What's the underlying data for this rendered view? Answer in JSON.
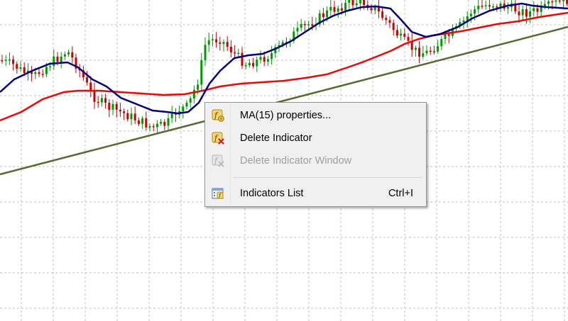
{
  "chart": {
    "background": "#ffffff",
    "grid_color": "#c0c0c0",
    "bull_candle_color": "#009900",
    "bear_candle_color": "#cc0000",
    "ma_fast_color": "#000080",
    "ma_slow_color": "#ff0000",
    "trendline_color": "#556b2f"
  },
  "context_menu": {
    "items": [
      {
        "label": "MA(15) properties...",
        "icon": "indicator-properties-icon",
        "enabled": true,
        "shortcut": ""
      },
      {
        "label": "Delete Indicator",
        "icon": "delete-indicator-icon",
        "enabled": true,
        "shortcut": ""
      },
      {
        "label": "Delete Indicator Window",
        "icon": "delete-indicator-window-icon",
        "enabled": false,
        "shortcut": ""
      },
      {
        "label": "Indicators List",
        "icon": "indicators-list-icon",
        "enabled": true,
        "shortcut": "Ctrl+I"
      }
    ]
  }
}
